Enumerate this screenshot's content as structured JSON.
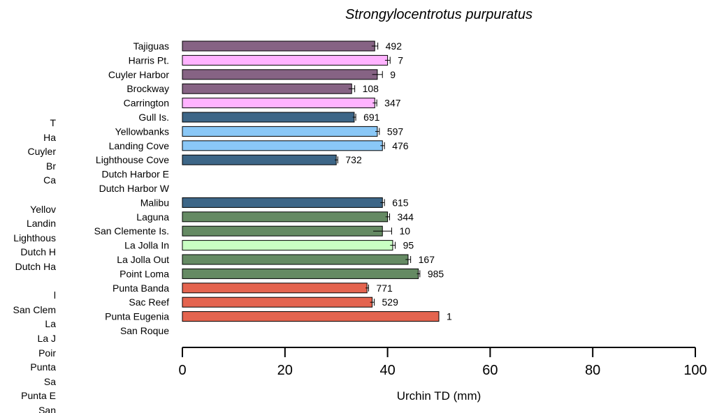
{
  "chart_data": {
    "type": "bar",
    "orientation": "horizontal",
    "title": "Strongylocentrotus purpuratus",
    "xlabel": "Urchin TD (mm)",
    "ylabel": "",
    "xlim": [
      0,
      100
    ],
    "xticks": [
      "0",
      "20",
      "40",
      "60",
      "80",
      "100"
    ],
    "grid": false,
    "categories": [
      "Tajiguas",
      "Harris Pt.",
      "Cuyler Harbor",
      "Brockway",
      "Carrington",
      "Gull Is.",
      "Yellowbanks",
      "Landing Cove",
      "Lighthouse Cove",
      "Dutch Harbor E",
      "Dutch Harbor W",
      "Malibu",
      "Laguna",
      "San Clemente Is.",
      "La Jolla In",
      "La Jolla Out",
      "Point Loma",
      "Punta Banda",
      "Sac Reef",
      "Punta Eugenia",
      "San Roque"
    ],
    "values": [
      37.5,
      40,
      38,
      33,
      37.5,
      33.5,
      38,
      39,
      30,
      null,
      null,
      39,
      40,
      39,
      41,
      44,
      46,
      36,
      37,
      50,
      null
    ],
    "errors": [
      0.6,
      0.5,
      1.0,
      0.6,
      0.4,
      0.3,
      0.4,
      0.4,
      0.3,
      null,
      null,
      0.4,
      0.4,
      1.8,
      0.5,
      0.5,
      0.3,
      0.3,
      0.4,
      0,
      null
    ],
    "n_labels": [
      "492",
      "7",
      "9",
      "108",
      "347",
      "691",
      "597",
      "476",
      "732",
      "",
      "",
      "615",
      "344",
      "10",
      "95",
      "167",
      "985",
      "771",
      "529",
      "1",
      ""
    ],
    "colors": [
      "#866384",
      "#ffb3ff",
      "#866384",
      "#866384",
      "#ffb3ff",
      "#3d6687",
      "#8ac8f7",
      "#8ac8f7",
      "#3d6687",
      null,
      null,
      "#3d6687",
      "#658a63",
      "#658a63",
      "#c9ffc3",
      "#658a63",
      "#658a63",
      "#e4644f",
      "#e4644f",
      "#e4644f",
      null
    ]
  },
  "background_labels": [
    "T",
    "Ha",
    "Cuyler",
    "Br",
    "Ca",
    "",
    "Yellov",
    "Landin",
    "Lighthous",
    "Dutch H",
    "Dutch Ha",
    "",
    "l",
    "San Clem",
    "La",
    "La J",
    "Poir",
    "Punta",
    "Sa",
    "Punta E",
    "San"
  ]
}
